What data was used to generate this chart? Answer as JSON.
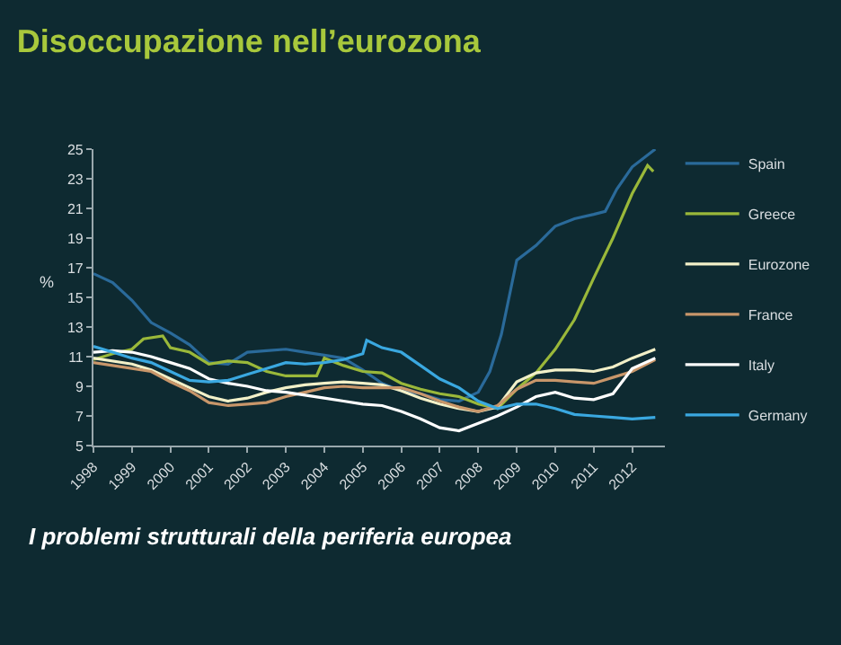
{
  "chart_data": {
    "type": "line",
    "title": "Disoccupazione nell’eurozona",
    "ylabel": "%",
    "annotations": [
      "I problemi strutturali della periferia europea"
    ],
    "xlim": [
      1998,
      2012.85
    ],
    "xticks": [
      1998,
      1999,
      2000,
      2001,
      2002,
      2003,
      2004,
      2005,
      2006,
      2007,
      2008,
      2009,
      2010,
      2011,
      2012
    ],
    "ylim": [
      5,
      25
    ],
    "yticks": [
      5,
      7,
      9,
      11,
      13,
      15,
      17,
      19,
      21,
      23,
      25
    ],
    "grid": false,
    "legend": "right",
    "marker": "none",
    "line_style": "solid",
    "series": [
      {
        "name": "Spain",
        "color": "#2a6a9a",
        "x": [
          1998,
          1998.5,
          1999,
          1999.5,
          2000,
          2000.5,
          2001,
          2001.5,
          2002,
          2002.5,
          2003,
          2003.5,
          2004,
          2004.5,
          2005,
          2005.5,
          2006,
          2006.5,
          2007,
          2007.5,
          2008,
          2008.3,
          2008.6,
          2009,
          2009.5,
          2010,
          2010.5,
          2011,
          2011.3,
          2011.6,
          2012,
          2012.6
        ],
        "values": [
          16.6,
          16,
          14.8,
          13.3,
          12.6,
          11.8,
          10.6,
          10.5,
          11.3,
          11.4,
          11.5,
          11.3,
          11.1,
          10.9,
          10.1,
          9.2,
          8.7,
          8.5,
          8.1,
          8.0,
          8.6,
          10.0,
          12.5,
          17.5,
          18.5,
          19.8,
          20.3,
          20.6,
          20.8,
          22.3,
          23.8,
          25.0
        ]
      },
      {
        "name": "Greece",
        "color": "#9ab83a",
        "x": [
          1998,
          1998.5,
          1999,
          1999.3,
          1999.8,
          2000,
          2000.5,
          2001,
          2001.5,
          2002,
          2002.5,
          2003,
          2003.8,
          2004,
          2004.5,
          2005,
          2005.5,
          2006,
          2006.5,
          2007,
          2007.5,
          2008,
          2008.5,
          2009,
          2009.5,
          2010,
          2010.5,
          2011,
          2011.5,
          2012,
          2012.4,
          2012.55
        ],
        "values": [
          10.8,
          11.2,
          11.5,
          12.2,
          12.4,
          11.6,
          11.3,
          10.5,
          10.7,
          10.6,
          10.0,
          9.7,
          9.7,
          10.9,
          10.4,
          10.0,
          9.9,
          9.2,
          8.8,
          8.5,
          8.3,
          7.8,
          7.5,
          8.8,
          9.9,
          11.5,
          13.5,
          16.3,
          19.0,
          22.0,
          23.9,
          23.5
        ]
      },
      {
        "name": "Eurozone",
        "color": "#f2f0c8",
        "x": [
          1998,
          1999,
          1999.5,
          2000,
          2000.5,
          2001,
          2001.5,
          2002,
          2002.5,
          2003,
          2003.5,
          2004,
          2004.5,
          2005,
          2005.5,
          2006,
          2006.5,
          2007,
          2007.5,
          2008,
          2008.5,
          2009,
          2009.5,
          2010,
          2010.5,
          2011,
          2011.5,
          2012,
          2012.6
        ],
        "values": [
          10.9,
          10.5,
          10.1,
          9.5,
          8.9,
          8.3,
          8.0,
          8.2,
          8.6,
          8.9,
          9.1,
          9.2,
          9.3,
          9.2,
          9.1,
          8.7,
          8.2,
          7.8,
          7.5,
          7.3,
          7.6,
          9.3,
          9.9,
          10.1,
          10.1,
          10.0,
          10.3,
          10.9,
          11.5
        ]
      },
      {
        "name": "France",
        "color": "#c8966a",
        "x": [
          1998,
          1999,
          1999.5,
          2000,
          2000.5,
          2001,
          2001.5,
          2002,
          2002.5,
          2003,
          2003.5,
          2004,
          2004.5,
          2005,
          2005.5,
          2006,
          2006.5,
          2007,
          2007.5,
          2008,
          2008.5,
          2009,
          2009.5,
          2010,
          2010.5,
          2011,
          2011.5,
          2012,
          2012.6
        ],
        "values": [
          10.6,
          10.2,
          10.0,
          9.3,
          8.7,
          7.9,
          7.7,
          7.8,
          7.9,
          8.3,
          8.6,
          8.9,
          9.0,
          8.9,
          8.9,
          8.9,
          8.5,
          8.0,
          7.6,
          7.3,
          7.7,
          8.8,
          9.4,
          9.4,
          9.3,
          9.2,
          9.6,
          10.0,
          10.8
        ]
      },
      {
        "name": "Italy",
        "color": "#ffffff",
        "x": [
          1998,
          1998.5,
          1999,
          1999.5,
          2000,
          2000.5,
          2001,
          2001.5,
          2002,
          2002.5,
          2003,
          2003.5,
          2004,
          2004.5,
          2005,
          2005.5,
          2006,
          2006.5,
          2007,
          2007.5,
          2008,
          2008.5,
          2009,
          2009.5,
          2010,
          2010.5,
          2011,
          2011.5,
          2012,
          2012.6
        ],
        "values": [
          11.3,
          11.4,
          11.3,
          11.0,
          10.6,
          10.2,
          9.5,
          9.2,
          9.0,
          8.7,
          8.6,
          8.4,
          8.2,
          8.0,
          7.8,
          7.7,
          7.3,
          6.8,
          6.2,
          6.0,
          6.5,
          7.0,
          7.6,
          8.3,
          8.6,
          8.2,
          8.1,
          8.5,
          10.2,
          10.9
        ]
      },
      {
        "name": "Germany",
        "color": "#3aa8e0",
        "x": [
          1998,
          1998.5,
          1999,
          1999.5,
          2000,
          2000.5,
          2001,
          2001.5,
          2002,
          2002.5,
          2003,
          2003.5,
          2004,
          2004.5,
          2005,
          2005.1,
          2005.5,
          2006,
          2006.5,
          2007,
          2007.5,
          2008,
          2008.5,
          2009,
          2009.5,
          2010,
          2010.5,
          2011,
          2011.5,
          2012,
          2012.6
        ],
        "values": [
          11.7,
          11.3,
          10.9,
          10.6,
          10.0,
          9.4,
          9.3,
          9.4,
          9.8,
          10.2,
          10.6,
          10.5,
          10.6,
          10.8,
          11.2,
          12.1,
          11.6,
          11.3,
          10.4,
          9.5,
          8.9,
          8.0,
          7.5,
          7.8,
          7.8,
          7.5,
          7.1,
          7.0,
          6.9,
          6.8,
          6.9
        ]
      }
    ]
  }
}
